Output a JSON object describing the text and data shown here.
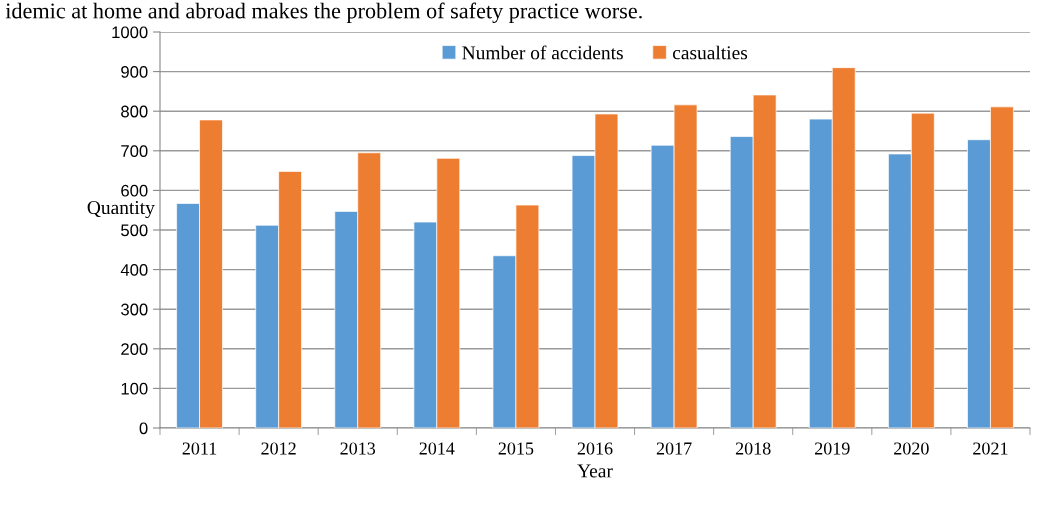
{
  "chart_data": {
    "type": "bar",
    "xlabel": "Year",
    "ylabel": "Quantity",
    "annotations": [
      "idemic at home and abroad makes the problem of safety practice worse."
    ],
    "categories": [
      "2011",
      "2012",
      "2013",
      "2014",
      "2015",
      "2016",
      "2017",
      "2018",
      "2019",
      "2020",
      "2021"
    ],
    "series": [
      {
        "name": "Number of accidents",
        "color": "#5b9bd5",
        "values": [
          567,
          512,
          547,
          520,
          435,
          688,
          714,
          736,
          780,
          692,
          728
        ]
      },
      {
        "name": "casualties",
        "color": "#ed7d31",
        "values": [
          778,
          648,
          695,
          681,
          563,
          793,
          816,
          841,
          910,
          795,
          811
        ]
      }
    ],
    "ylim": [
      0,
      1000
    ],
    "yticks": [
      0,
      100,
      200,
      300,
      400,
      500,
      600,
      700,
      800,
      900,
      1000
    ],
    "grid": "y",
    "legend": "top"
  }
}
